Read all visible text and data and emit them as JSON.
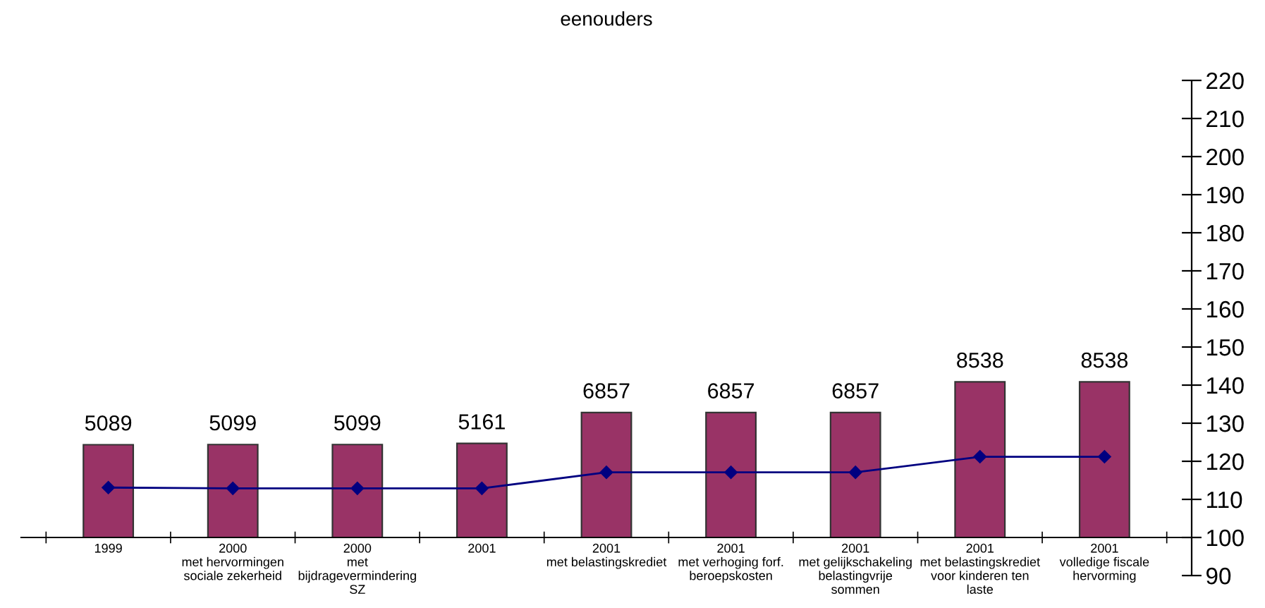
{
  "chart_data": {
    "type": "line",
    "title": "eenouders",
    "categories": [
      "1999",
      "2000\nmet hervormingen\nsociale zekerheid",
      "2000\nmet\nbijdragevermindering\nSZ",
      "2001",
      "2001\nmet belastingskrediet",
      "2001\nmet verhoging forf.\nberoepskosten",
      "2001\nmet gelijkschakeling\nbelastingvrije\nsommen",
      "2001\nmet belastingskrediet\nvoor kinderen ten\nlaste",
      "2001\nvolledige fiscale\nhervorming"
    ],
    "series": [
      {
        "type": "bar",
        "axis": "y2",
        "color": "#993366",
        "values": [
          5089,
          5099,
          5099,
          5161,
          6857,
          6857,
          6857,
          8538,
          8538
        ],
        "value_labels": [
          "5089",
          "5099",
          "5099",
          "5161",
          "6857",
          "6857",
          "6857",
          "8538",
          "8538"
        ]
      },
      {
        "axis": "y",
        "color": "#000080",
        "marker": "diamond",
        "line_style": "solid",
        "values": [
          113.1,
          112.9,
          112.9,
          112.9,
          117.1,
          117.1,
          117.1,
          121.2,
          121.2
        ]
      }
    ],
    "ylim": [
      90,
      220
    ],
    "yticks": [
      90,
      100,
      110,
      120,
      130,
      140,
      150,
      160,
      170,
      180,
      190,
      200,
      210,
      220
    ],
    "y2lim": [
      -2090,
      25080
    ],
    "grid": false,
    "legend": false
  }
}
